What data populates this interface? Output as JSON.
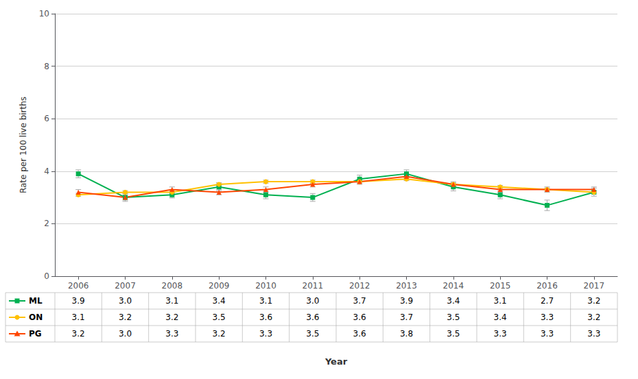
{
  "chart_data": {
    "type": "line",
    "xlabel": "Year",
    "ylabel": "Rate per 100 live births",
    "x": [
      2006,
      2007,
      2008,
      2009,
      2010,
      2011,
      2012,
      2013,
      2014,
      2015,
      2016,
      2017
    ],
    "xlim": [
      2005.5,
      2017.5
    ],
    "xticks": [
      2006,
      2007,
      2008,
      2009,
      2010,
      2011,
      2012,
      2013,
      2014,
      2015,
      2016,
      2017
    ],
    "ylim": [
      0,
      10
    ],
    "yticks": [
      0,
      2,
      4,
      6,
      8,
      10
    ],
    "grid": true,
    "series": [
      {
        "name": "ML",
        "color": "#00B050",
        "marker": "square",
        "values": [
          3.9,
          3.0,
          3.1,
          3.4,
          3.1,
          3.0,
          3.7,
          3.9,
          3.4,
          3.1,
          2.7,
          3.2
        ],
        "value_labels": [
          "3.9",
          "3.0",
          "3.1",
          "3.4",
          "3.1",
          "3.0",
          "3.7",
          "3.9",
          "3.4",
          "3.1",
          "2.7",
          "3.2"
        ],
        "errors": [
          0.15,
          0.15,
          0.12,
          0.15,
          0.15,
          0.15,
          0.15,
          0.15,
          0.15,
          0.15,
          0.2,
          0.15
        ]
      },
      {
        "name": "ON",
        "color": "#FFC000",
        "marker": "circle",
        "values": [
          3.1,
          3.2,
          3.2,
          3.5,
          3.6,
          3.6,
          3.6,
          3.7,
          3.5,
          3.4,
          3.3,
          3.2
        ],
        "value_labels": [
          "3.1",
          "3.2",
          "3.2",
          "3.5",
          "3.6",
          "3.6",
          "3.6",
          "3.7",
          "3.5",
          "3.4",
          "3.3",
          "3.2"
        ],
        "errors": [
          0.06,
          0.06,
          0.06,
          0.06,
          0.06,
          0.06,
          0.06,
          0.06,
          0.06,
          0.06,
          0.06,
          0.06
        ]
      },
      {
        "name": "PG",
        "color": "#FF4500",
        "marker": "triangle",
        "values": [
          3.2,
          3.0,
          3.3,
          3.2,
          3.3,
          3.5,
          3.6,
          3.8,
          3.5,
          3.3,
          3.3,
          3.3
        ],
        "value_labels": [
          "3.2",
          "3.0",
          "3.3",
          "3.2",
          "3.3",
          "3.5",
          "3.6",
          "3.8",
          "3.5",
          "3.3",
          "3.3",
          "3.3"
        ],
        "errors": [
          0.1,
          0.1,
          0.1,
          0.1,
          0.1,
          0.1,
          0.1,
          0.1,
          0.1,
          0.1,
          0.1,
          0.1
        ]
      }
    ]
  }
}
